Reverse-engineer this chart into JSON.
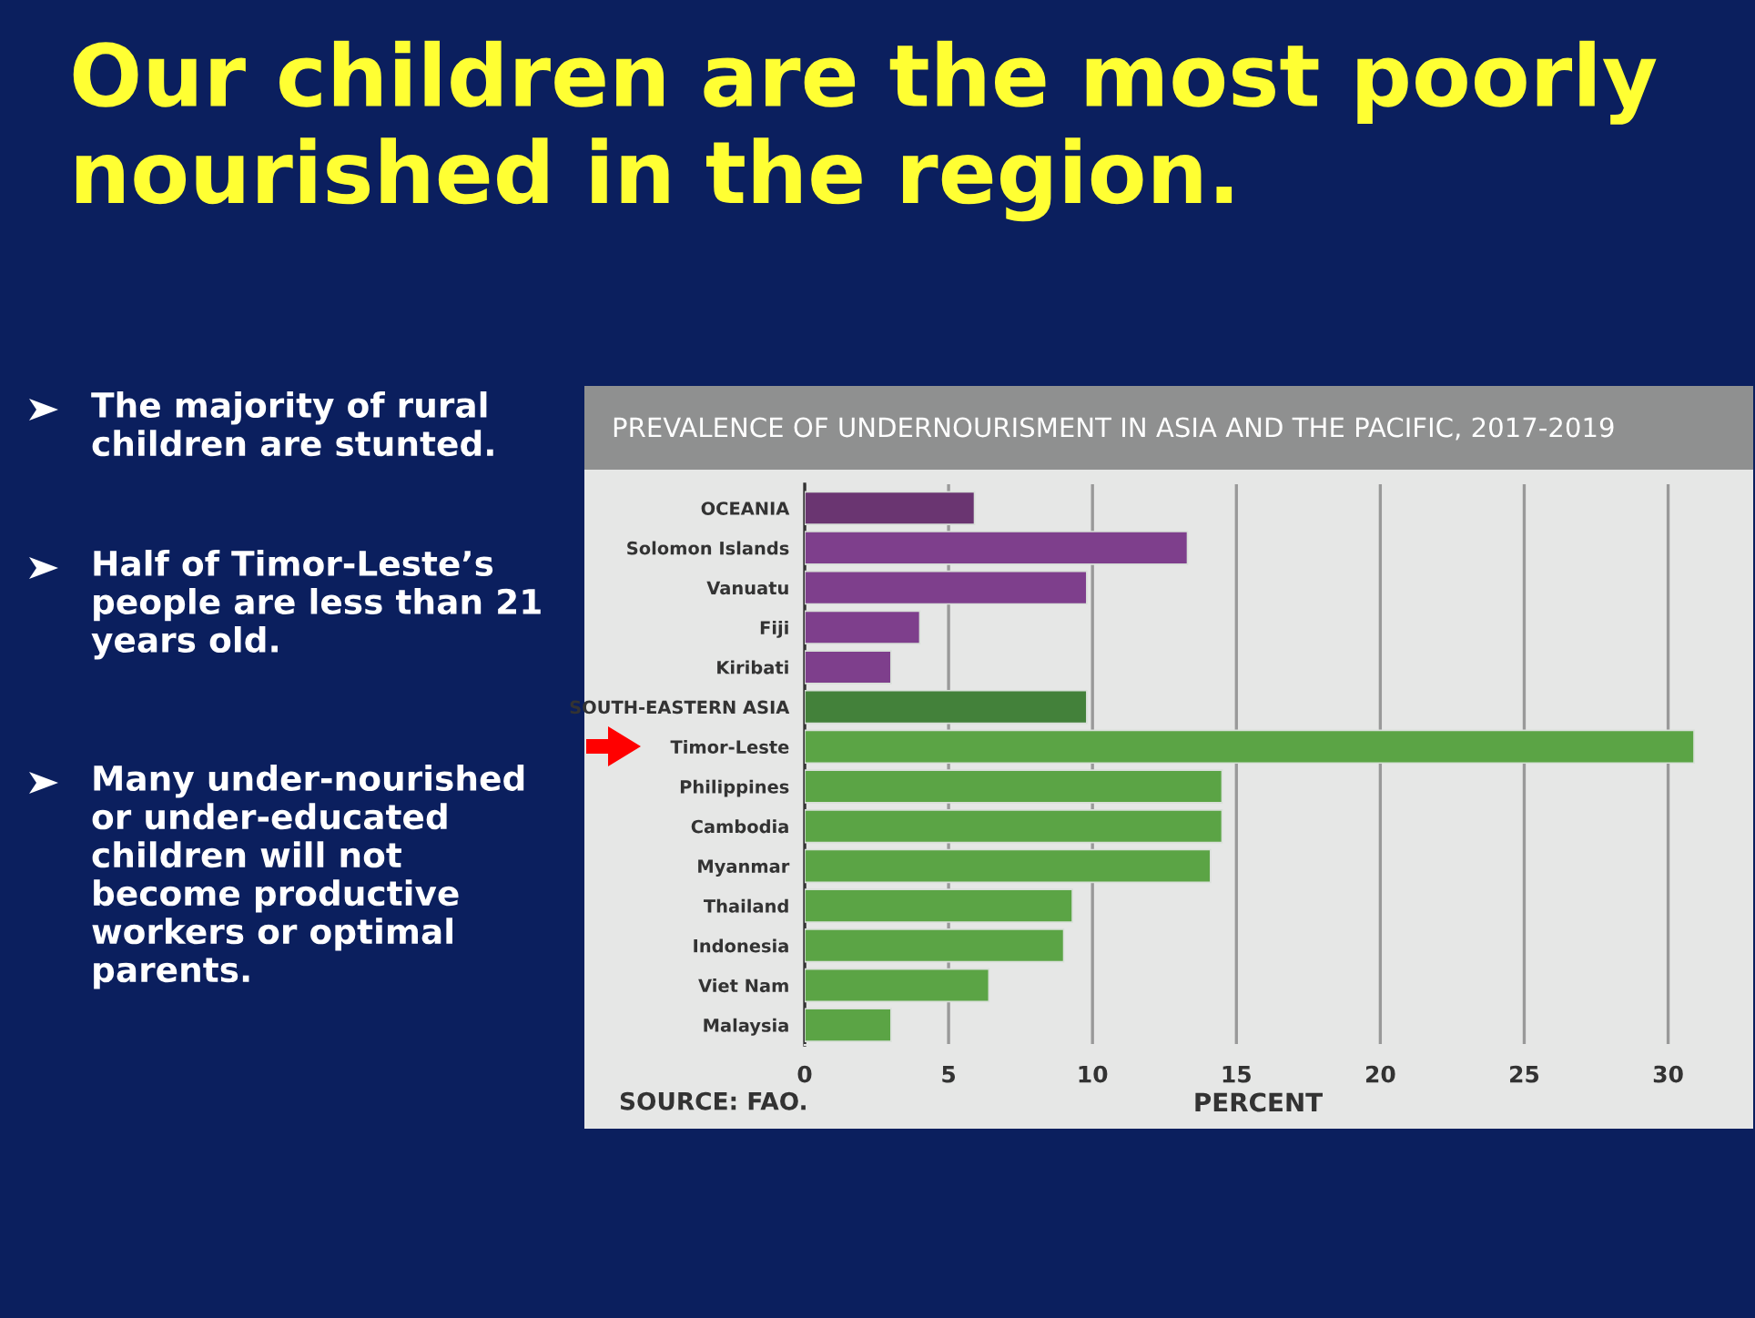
{
  "chart_data": {
    "type": "bar",
    "orientation": "horizontal",
    "title": "Our children are the most poorly nourished in the region.",
    "subtitle": "PREVALENCE OF UNDERNOURISMENT IN ASIA AND THE PACIFIC, 2017-2019",
    "xlabel": "PERCENT",
    "categories": [
      "OCEANIA",
      "Solomon Islands",
      "Vanuatu",
      "Fiji",
      "Kiribati",
      "SOUTH-EASTERN ASIA",
      "Timor-Leste",
      "Philippines",
      "Cambodia",
      "Myanmar",
      "Thailand",
      "Indonesia",
      "Viet Nam",
      "Malaysia"
    ],
    "values": [
      5.9,
      13.3,
      9.8,
      4.0,
      3.0,
      9.8,
      30.9,
      14.5,
      14.5,
      14.1,
      9.3,
      9.0,
      6.4,
      3.0
    ],
    "colors": [
      "#6a3571",
      "#7e3f8c",
      "#7e3f8c",
      "#7e3f8c",
      "#7e3f8c",
      "#43813a",
      "#5ba445",
      "#5ba445",
      "#5ba445",
      "#5ba445",
      "#5ba445",
      "#5ba445",
      "#5ba445",
      "#5ba445"
    ],
    "xlim": [
      0,
      31.5
    ],
    "xticks": [
      0,
      5,
      10,
      15,
      20,
      25,
      30
    ],
    "grid": "x",
    "annotations": [
      "The majority of rural children are stunted.",
      "Half of Timor-Leste’s people are less than 21 years old.",
      "Many under-nourished or under-educated children will not become productive workers or optimal parents.",
      "SOURCE: FAO."
    ]
  }
}
